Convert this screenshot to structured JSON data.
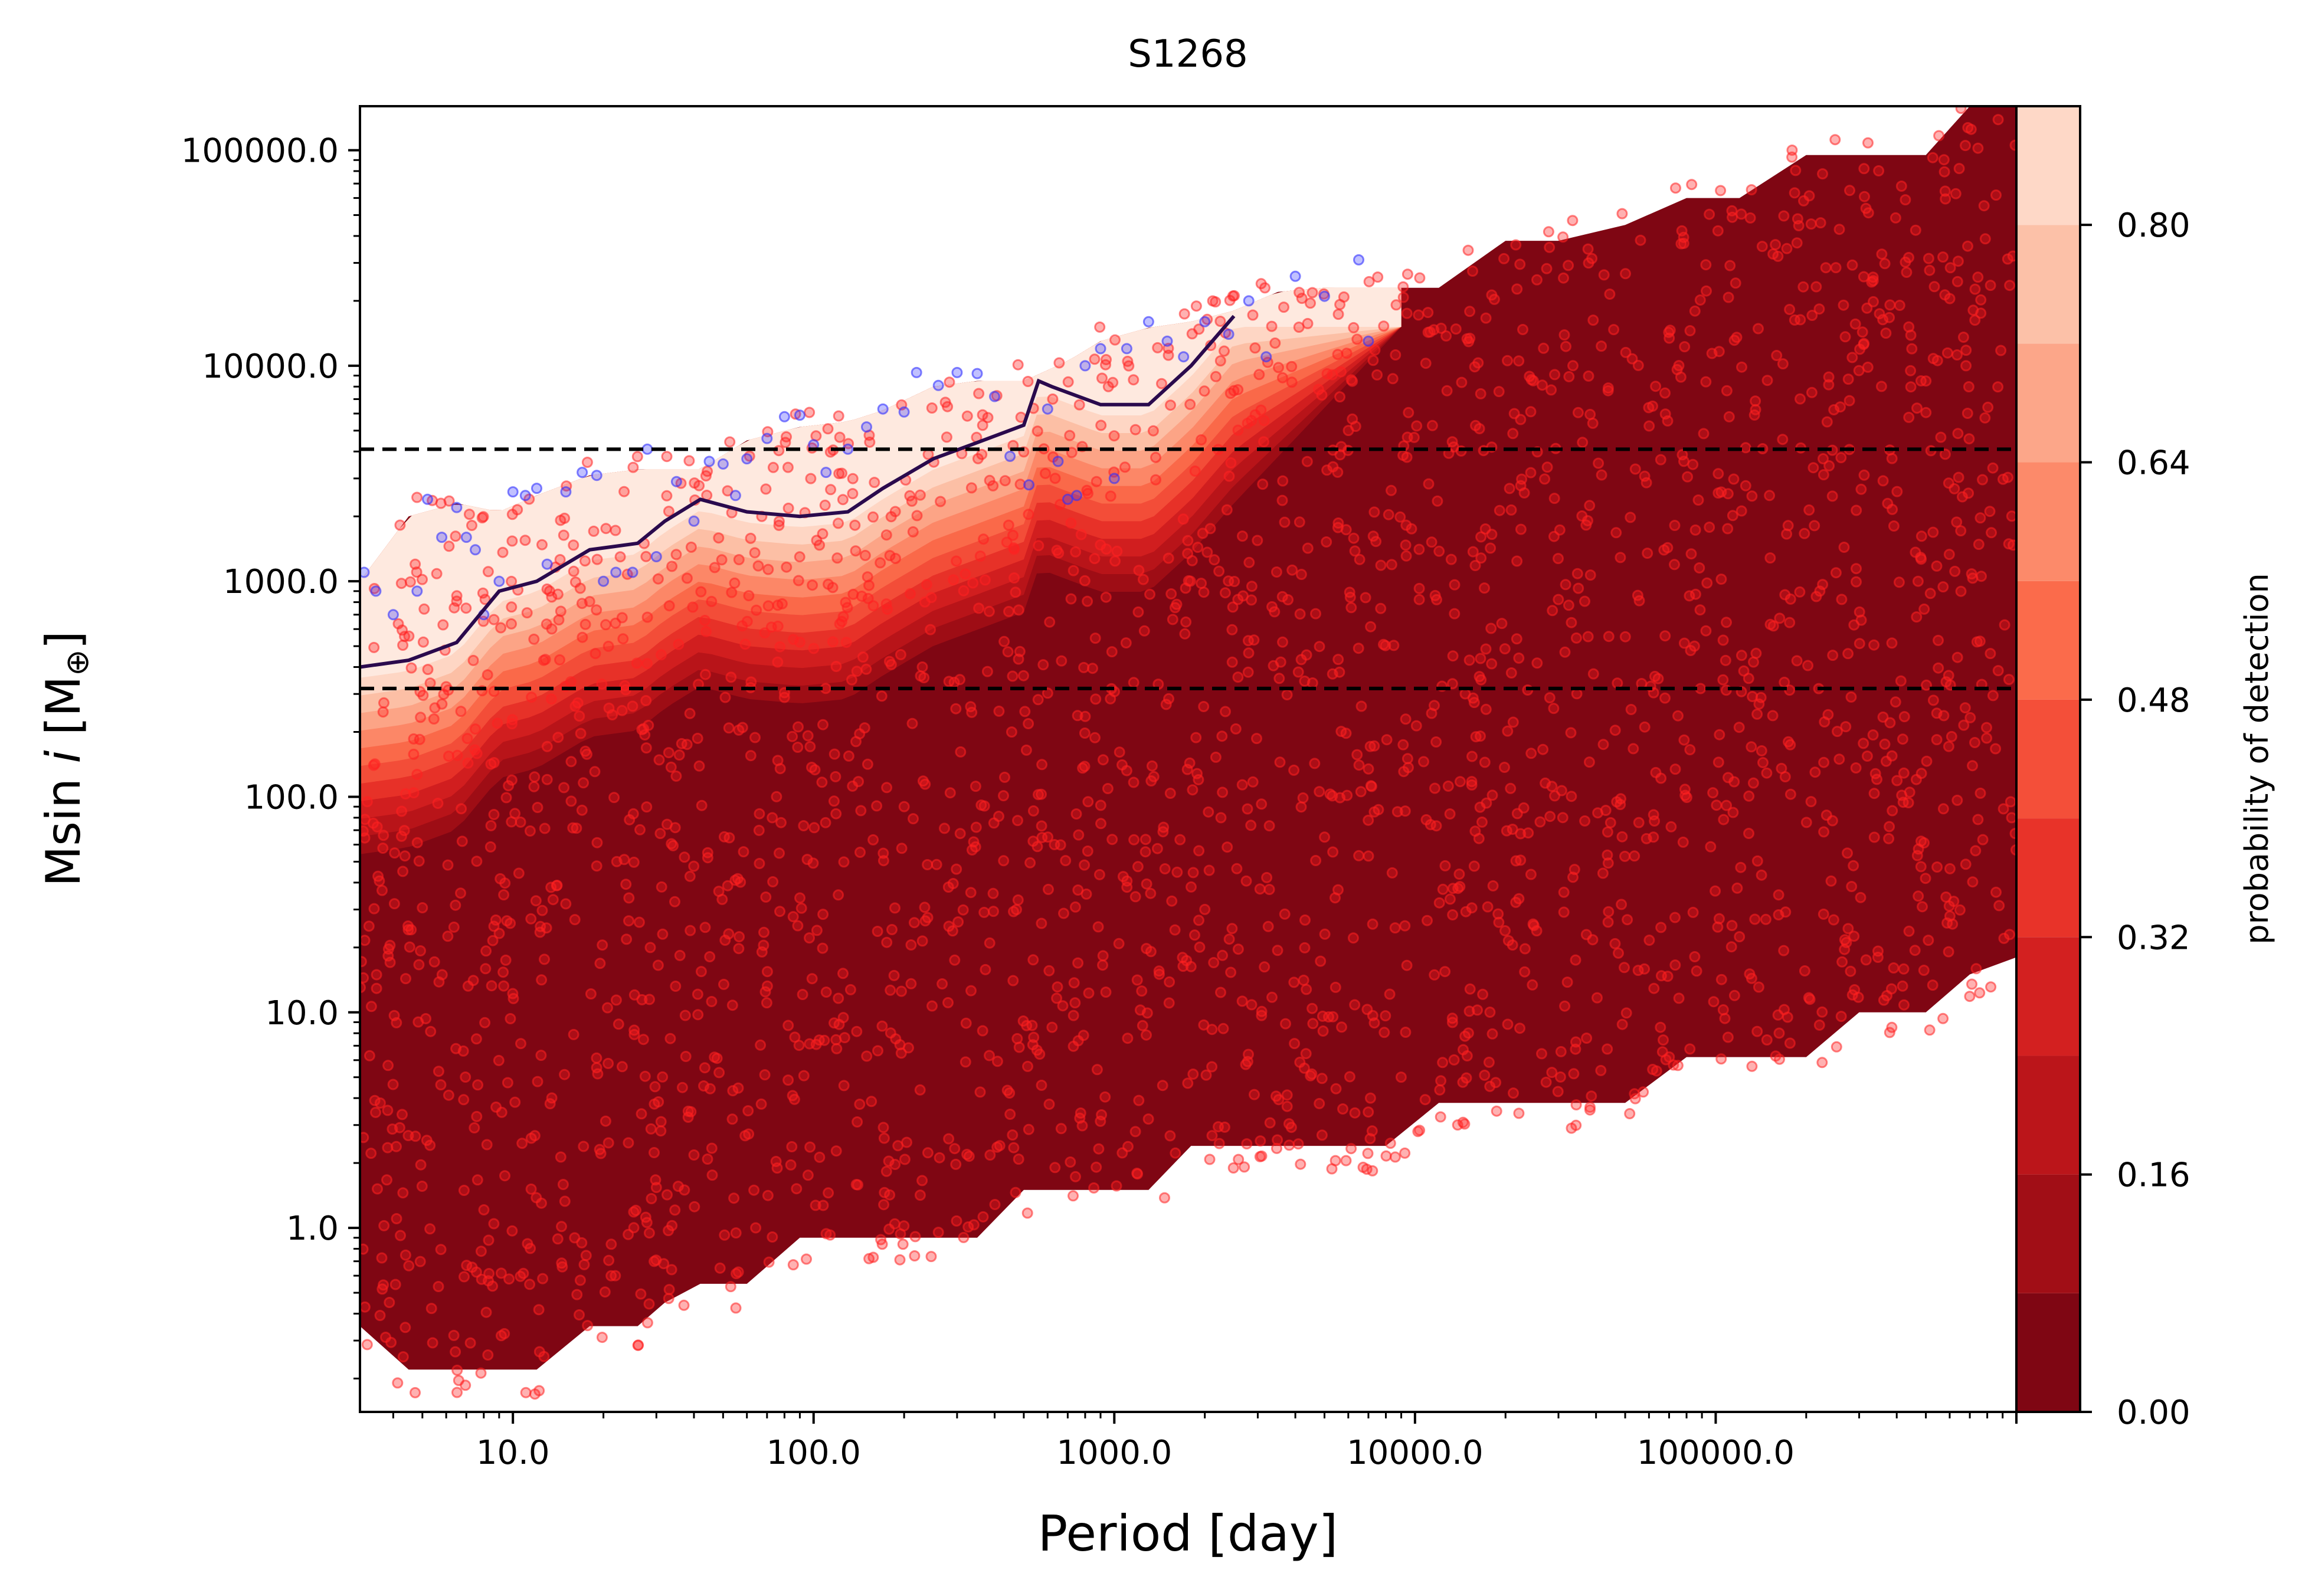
{
  "chart_data": {
    "type": "scatter",
    "title": "S1268",
    "xlabel": "Period [day]",
    "ylabel": "Msin i [M⊕]",
    "x_scale": "log",
    "y_scale": "log",
    "xlim": [
      3.1,
      1000000
    ],
    "ylim": [
      0.14,
      160000
    ],
    "x_ticks": [
      10,
      100,
      1000,
      10000,
      100000
    ],
    "x_tick_labels": [
      "10.0",
      "100.0",
      "1000.0",
      "10000.0",
      "100000.0"
    ],
    "y_ticks": [
      1,
      10,
      100,
      1000,
      10000,
      100000
    ],
    "y_tick_labels": [
      "1.0",
      "10.0",
      "100.0",
      "1000.0",
      "10000.0",
      "100000.0"
    ],
    "grid": false,
    "colorbar": {
      "label": "probability of detection",
      "range": [
        0,
        0.88
      ],
      "ticks": [
        0.0,
        0.16,
        0.32,
        0.48,
        0.64,
        0.8
      ],
      "tick_labels": [
        "0.00",
        "0.16",
        "0.32",
        "0.48",
        "0.64",
        "0.80"
      ],
      "levels": [
        0,
        0.08,
        0.16,
        0.24,
        0.32,
        0.4,
        0.48,
        0.56,
        0.64,
        0.72,
        0.8,
        0.88
      ],
      "colors": [
        "#7f0613",
        "#a10e16",
        "#bb151a",
        "#d32020",
        "#e83329",
        "#f44f39",
        "#fb6b4b",
        "#fc8a6a",
        "#fca689",
        "#fcc1a8",
        "#fed8c7",
        "#feeae1"
      ]
    },
    "reference_lines": [
      {
        "y": 4100,
        "style": "dashed",
        "color": "#000000"
      },
      {
        "y": 318,
        "style": "dashed",
        "color": "#000000"
      }
    ],
    "detection_curve": {
      "color": "#2a0a4d",
      "x": [
        3.1,
        4.5,
        6.5,
        9,
        12,
        18,
        26,
        32,
        42,
        60,
        90,
        130,
        170,
        250,
        350,
        500,
        560,
        620,
        900,
        1300,
        1800,
        2500
      ],
      "y": [
        400,
        430,
        520,
        900,
        1000,
        1400,
        1500,
        1900,
        2400,
        2100,
        2000,
        2100,
        2700,
        3700,
        4400,
        5300,
        8500,
        8000,
        6600,
        6600,
        10000,
        17000
      ]
    },
    "band": {
      "x": [
        3.1,
        4.5,
        6.5,
        9,
        12,
        18,
        26,
        32,
        42,
        60,
        90,
        130,
        170,
        250,
        350,
        500,
        700,
        900,
        1300,
        1800,
        2500,
        3500,
        5000,
        8000,
        12000,
        20000,
        30000,
        50000,
        80000,
        120000,
        200000,
        300000,
        500000,
        700000,
        1000000
      ],
      "upper": [
        1000,
        2000,
        2300,
        2100,
        2500,
        3100,
        3300,
        3300,
        3300,
        4500,
        5200,
        5500,
        6200,
        8000,
        8500,
        8500,
        10500,
        13000,
        15000,
        16000,
        18000,
        22000,
        23000,
        23000,
        23000,
        38000,
        38000,
        45000,
        60000,
        60000,
        95000,
        95000,
        95000,
        160000,
        160000
      ],
      "lower": [
        0.35,
        0.22,
        0.22,
        0.22,
        0.22,
        0.35,
        0.35,
        0.45,
        0.55,
        0.55,
        0.9,
        0.9,
        0.9,
        0.9,
        0.9,
        1.5,
        1.5,
        1.5,
        1.5,
        2.4,
        2.4,
        2.4,
        2.4,
        2.4,
        3.8,
        3.8,
        3.8,
        3.8,
        6.2,
        6.2,
        6.2,
        10,
        10,
        15,
        18
      ]
    },
    "points": {
      "red_color": "#ff2020",
      "blue_color": "#3030ff",
      "blue_sample": [
        [
          3.2,
          1100
        ],
        [
          3.5,
          900
        ],
        [
          4.0,
          700
        ],
        [
          4.8,
          900
        ],
        [
          5.2,
          2400
        ],
        [
          5.8,
          1600
        ],
        [
          6.5,
          2200
        ],
        [
          7.0,
          1600
        ],
        [
          7.5,
          1400
        ],
        [
          8.0,
          700
        ],
        [
          9.0,
          1000
        ],
        [
          10,
          2600
        ],
        [
          11,
          2500
        ],
        [
          12,
          2700
        ],
        [
          13,
          1200
        ],
        [
          15,
          2600
        ],
        [
          17,
          3200
        ],
        [
          19,
          3100
        ],
        [
          20,
          1000
        ],
        [
          22,
          1100
        ],
        [
          25,
          1100
        ],
        [
          28,
          4100
        ],
        [
          30,
          1300
        ],
        [
          35,
          2900
        ],
        [
          40,
          1900
        ],
        [
          45,
          3600
        ],
        [
          50,
          3500
        ],
        [
          55,
          2500
        ],
        [
          60,
          3700
        ],
        [
          70,
          4600
        ],
        [
          80,
          5800
        ],
        [
          90,
          5900
        ],
        [
          100,
          4300
        ],
        [
          110,
          3200
        ],
        [
          130,
          4100
        ],
        [
          150,
          5200
        ],
        [
          170,
          6300
        ],
        [
          200,
          6100
        ],
        [
          220,
          9300
        ],
        [
          260,
          8100
        ],
        [
          300,
          9300
        ],
        [
          350,
          9200
        ],
        [
          400,
          7200
        ],
        [
          450,
          3800
        ],
        [
          520,
          2800
        ],
        [
          600,
          6300
        ],
        [
          650,
          3600
        ],
        [
          700,
          2400
        ],
        [
          750,
          2500
        ],
        [
          800,
          10000
        ],
        [
          900,
          12000
        ],
        [
          1000,
          3000
        ],
        [
          1100,
          12000
        ],
        [
          1300,
          16000
        ],
        [
          1500,
          13000
        ],
        [
          1700,
          11000
        ],
        [
          2000,
          16000
        ],
        [
          2400,
          14000
        ],
        [
          2800,
          20000
        ],
        [
          3200,
          11000
        ],
        [
          4000,
          26000
        ],
        [
          5000,
          21000
        ],
        [
          6500,
          31000
        ],
        [
          7000,
          13000
        ]
      ]
    }
  }
}
